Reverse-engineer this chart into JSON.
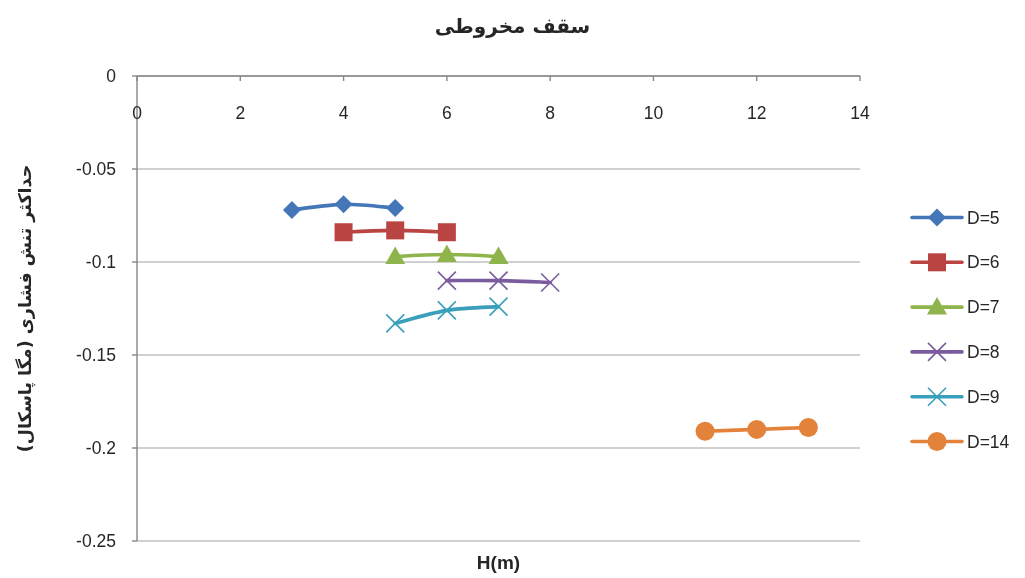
{
  "chart_data": {
    "type": "line",
    "title": "سقف مخروطی",
    "xlabel": "H(m)",
    "ylabel": "حداکثر تنش فشاری (مگا پاسکال)",
    "xlim": [
      0,
      14
    ],
    "ylim": [
      -0.25,
      0
    ],
    "xticks": [
      0,
      2,
      4,
      6,
      8,
      10,
      12,
      14
    ],
    "yticks": [
      -0.25,
      -0.2,
      -0.15,
      -0.1,
      -0.05,
      0
    ],
    "grid": "y",
    "legend": "right",
    "series": [
      {
        "name": "D=5",
        "color": "#4576b8",
        "marker": "diamond",
        "x": [
          3,
          4,
          5
        ],
        "values": [
          -0.072,
          -0.069,
          -0.071
        ]
      },
      {
        "name": "D=6",
        "color": "#b94441",
        "marker": "square",
        "x": [
          4,
          5,
          6
        ],
        "values": [
          -0.084,
          -0.083,
          -0.084
        ]
      },
      {
        "name": "D=7",
        "color": "#8fb44c",
        "marker": "triangle",
        "x": [
          5,
          6,
          7
        ],
        "values": [
          -0.097,
          -0.096,
          -0.097
        ]
      },
      {
        "name": "D=8",
        "color": "#7a5c9e",
        "marker": "cross",
        "x": [
          6,
          7,
          8
        ],
        "values": [
          -0.11,
          -0.11,
          -0.111
        ]
      },
      {
        "name": "D=9",
        "color": "#3a9fbb",
        "marker": "cross",
        "x": [
          5,
          6,
          7
        ],
        "values": [
          -0.133,
          -0.126,
          -0.124
        ]
      },
      {
        "name": "D=14",
        "color": "#e3823a",
        "marker": "circle",
        "x": [
          11,
          12,
          13
        ],
        "values": [
          -0.191,
          -0.19,
          -0.189
        ]
      }
    ]
  }
}
